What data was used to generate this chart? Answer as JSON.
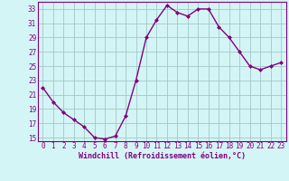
{
  "x": [
    0,
    1,
    2,
    3,
    4,
    5,
    6,
    7,
    8,
    9,
    10,
    11,
    12,
    13,
    14,
    15,
    16,
    17,
    18,
    19,
    20,
    21,
    22,
    23
  ],
  "y": [
    22,
    20,
    18.5,
    17.5,
    16.5,
    15,
    14.8,
    15.2,
    18,
    23,
    29,
    31.5,
    33.5,
    32.5,
    32,
    33,
    33,
    30.5,
    29,
    27,
    25,
    24.5,
    25,
    25.5
  ],
  "line_color": "#800080",
  "marker": "D",
  "markersize": 2,
  "linewidth": 1.0,
  "bg_color": "#d4f5f5",
  "grid_color": "#a0c8c8",
  "xlabel": "Windchill (Refroidissement éolien,°C)",
  "xlim": [
    -0.5,
    23.5
  ],
  "ylim": [
    14.5,
    34
  ],
  "yticks": [
    15,
    17,
    19,
    21,
    23,
    25,
    27,
    29,
    31,
    33
  ],
  "xticks": [
    0,
    1,
    2,
    3,
    4,
    5,
    6,
    7,
    8,
    9,
    10,
    11,
    12,
    13,
    14,
    15,
    16,
    17,
    18,
    19,
    20,
    21,
    22,
    23
  ],
  "tick_fontsize": 5.5,
  "xlabel_fontsize": 6.0
}
